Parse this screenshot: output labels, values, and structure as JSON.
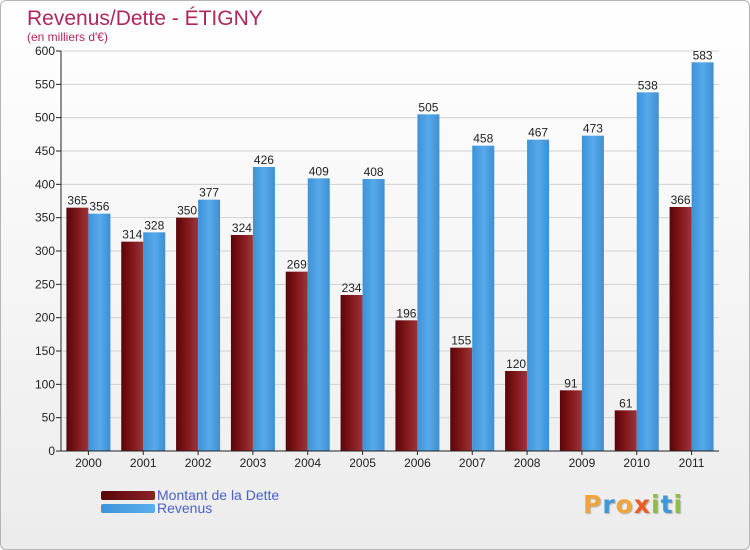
{
  "header": {
    "title": "Revenus/Dette - ÉTIGNY",
    "subtitle": "(en milliers d'€)"
  },
  "legend": {
    "items": [
      {
        "label": "Montant de la Dette",
        "color": "#7a1015"
      },
      {
        "label": "Revenus",
        "color": "#4ea4e6"
      }
    ]
  },
  "branding": {
    "logo_letters": [
      {
        "ch": "P",
        "color": "#f0a43a"
      },
      {
        "ch": "r",
        "color": "#3f96d8"
      },
      {
        "ch": "o",
        "color": "#f0a43a"
      },
      {
        "ch": "x",
        "color": "#ef5a22"
      },
      {
        "ch": "i",
        "color": "#8cbf3f"
      },
      {
        "ch": "t",
        "color": "#3f96d8"
      },
      {
        "ch": "i",
        "color": "#8cbf3f"
      }
    ]
  },
  "chart_data": {
    "type": "bar",
    "title": "Revenus/Dette - ÉTIGNY",
    "subtitle": "(en milliers d'€)",
    "categories": [
      "2000",
      "2001",
      "2002",
      "2003",
      "2004",
      "2005",
      "2006",
      "2007",
      "2008",
      "2009",
      "2010",
      "2011"
    ],
    "series": [
      {
        "name": "Montant de la Dette",
        "color": "#7a1015",
        "values": [
          365,
          314,
          350,
          324,
          269,
          234,
          196,
          155,
          120,
          91,
          61,
          366
        ]
      },
      {
        "name": "Revenus",
        "color": "#4ea4e6",
        "values": [
          356,
          328,
          377,
          426,
          409,
          408,
          505,
          458,
          467,
          473,
          538,
          583
        ]
      }
    ],
    "ylim": [
      0,
      600
    ],
    "yticks": [
      0,
      50,
      100,
      150,
      200,
      250,
      300,
      350,
      400,
      450,
      500,
      550,
      600
    ],
    "grid": true,
    "legend_position": "bottom-left"
  }
}
